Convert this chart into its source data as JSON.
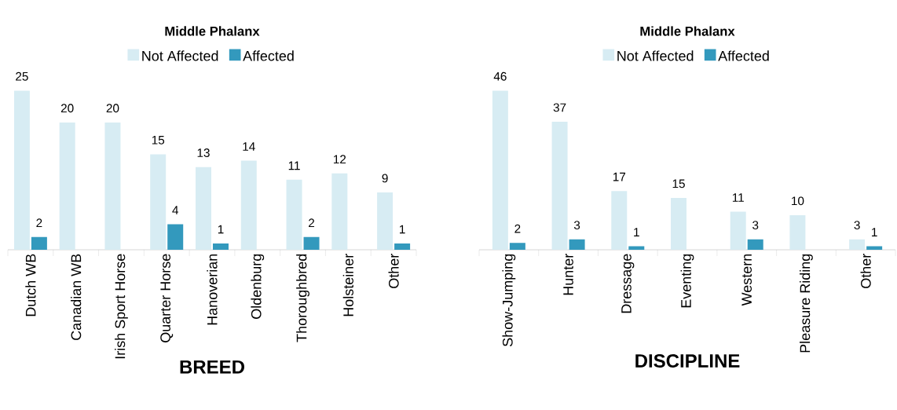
{
  "chart_data": [
    {
      "type": "bar",
      "title": "Middle Phalanx",
      "xlabel": "BREED",
      "categories": [
        "Dutch WB",
        "Canadian WB",
        "Irish Sport Horse",
        "Quarter Horse",
        "Hanoverian",
        "Oldenburg",
        "Thoroughbred",
        "Holsteiner",
        "Other"
      ],
      "series": [
        {
          "name": "Not Affected",
          "color": "#d7ecf3",
          "values": [
            25,
            20,
            20,
            15,
            13,
            14,
            11,
            12,
            9
          ]
        },
        {
          "name": "Affected",
          "color": "#3399bd",
          "values": [
            2,
            null,
            null,
            4,
            1,
            null,
            2,
            null,
            1
          ]
        }
      ],
      "tick_labels": "x",
      "data_labels": true,
      "legend": "top"
    },
    {
      "type": "bar",
      "title": "Middle Phalanx",
      "xlabel": "DISCIPLINE",
      "categories": [
        "Show-Jumping",
        "Hunter",
        "Dressage",
        "Eventing",
        "Western",
        "Pleasure Riding",
        "Other"
      ],
      "series": [
        {
          "name": "Not Affected",
          "color": "#d7ecf3",
          "values": [
            46,
            37,
            17,
            15,
            11,
            10,
            3
          ]
        },
        {
          "name": "Affected",
          "color": "#3399bd",
          "values": [
            2,
            3,
            1,
            null,
            3,
            null,
            1
          ]
        }
      ],
      "tick_labels": "x",
      "data_labels": true,
      "legend": "top"
    }
  ]
}
